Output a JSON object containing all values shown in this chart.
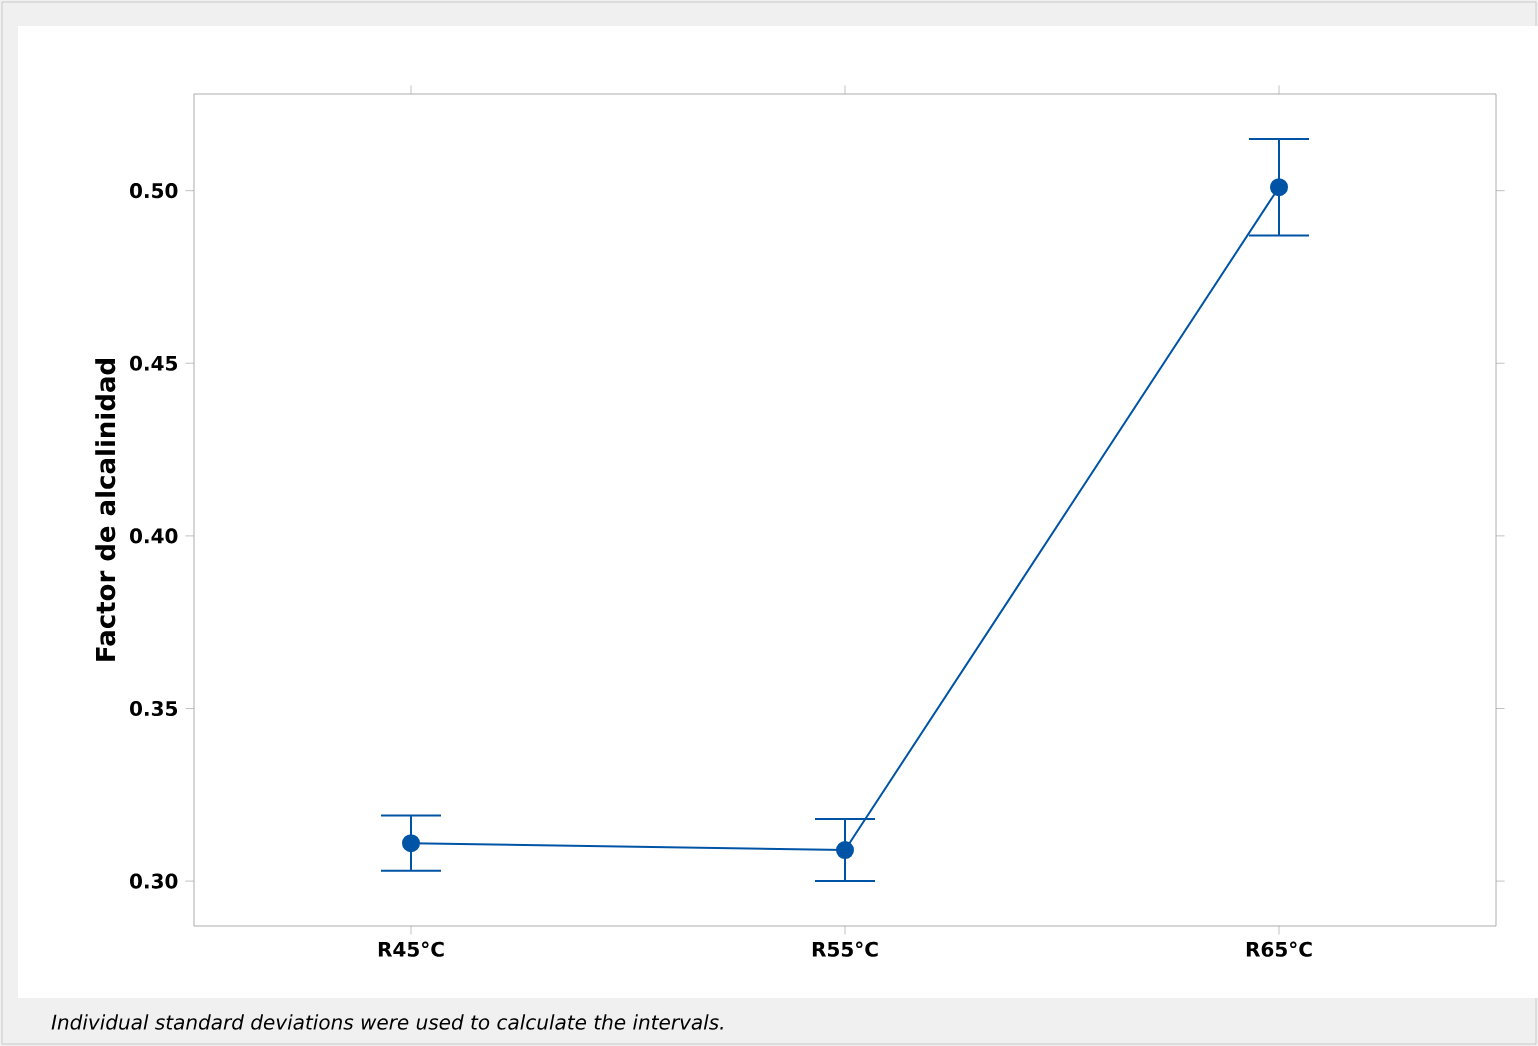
{
  "chart_data": {
    "type": "line",
    "ylabel": "Factor de alcalinidad",
    "categories": [
      "R45°C",
      "R55°C",
      "R65°C"
    ],
    "values": [
      0.311,
      0.309,
      0.501
    ],
    "errors": [
      0.008,
      0.009,
      0.014
    ],
    "color": "#0054a6",
    "marker": "circle",
    "line_style": "solid",
    "ylim": [
      0.287,
      0.528
    ],
    "yticks": [
      {
        "value": 0.3,
        "label": "0.30"
      },
      {
        "value": 0.35,
        "label": "0.35"
      },
      {
        "value": 0.4,
        "label": "0.40"
      },
      {
        "value": 0.45,
        "label": "0.45"
      },
      {
        "value": 0.5,
        "label": "0.50"
      }
    ],
    "annotations": [
      "Individual standard deviations were used to calculate the intervals."
    ]
  }
}
